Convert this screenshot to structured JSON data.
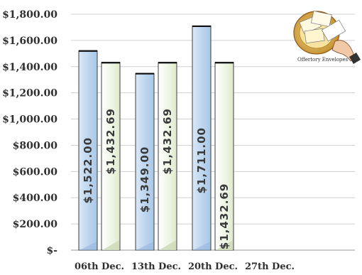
{
  "chart_data": {
    "type": "bar",
    "categories": [
      "06th Dec.",
      "13th Dec.",
      "20th Dec.",
      "27th Dec."
    ],
    "series": [
      {
        "values": [
          1522.0,
          1349.0,
          1711.0,
          null
        ],
        "color": "#c6dcf2"
      },
      {
        "values": [
          1432.69,
          1432.69,
          1432.69,
          null
        ],
        "color": "#eef4e2"
      }
    ],
    "data_labels": [
      [
        "$1,522.00",
        "$1,349.00",
        "$1,711.00",
        ""
      ],
      [
        "$1,432.69",
        "$1,432.69",
        "$1,432.69",
        ""
      ]
    ],
    "y_tick_labels": [
      "$-",
      "$200.00",
      "$400.00",
      "$600.00",
      "$800.00",
      "$1,000.00",
      "$1,200.00",
      "$1,400.00",
      "$1,600.00",
      "$1,800.00"
    ],
    "y_tick_values": [
      0,
      200,
      400,
      600,
      800,
      1000,
      1200,
      1400,
      1600,
      1800
    ],
    "ylim": [
      0,
      1800
    ],
    "grid": true,
    "title": "",
    "xlabel": "",
    "ylabel": ""
  },
  "logo": {
    "icon": "offertory-envelopes-clipart-icon",
    "caption": "Offertory Envelopes"
  }
}
